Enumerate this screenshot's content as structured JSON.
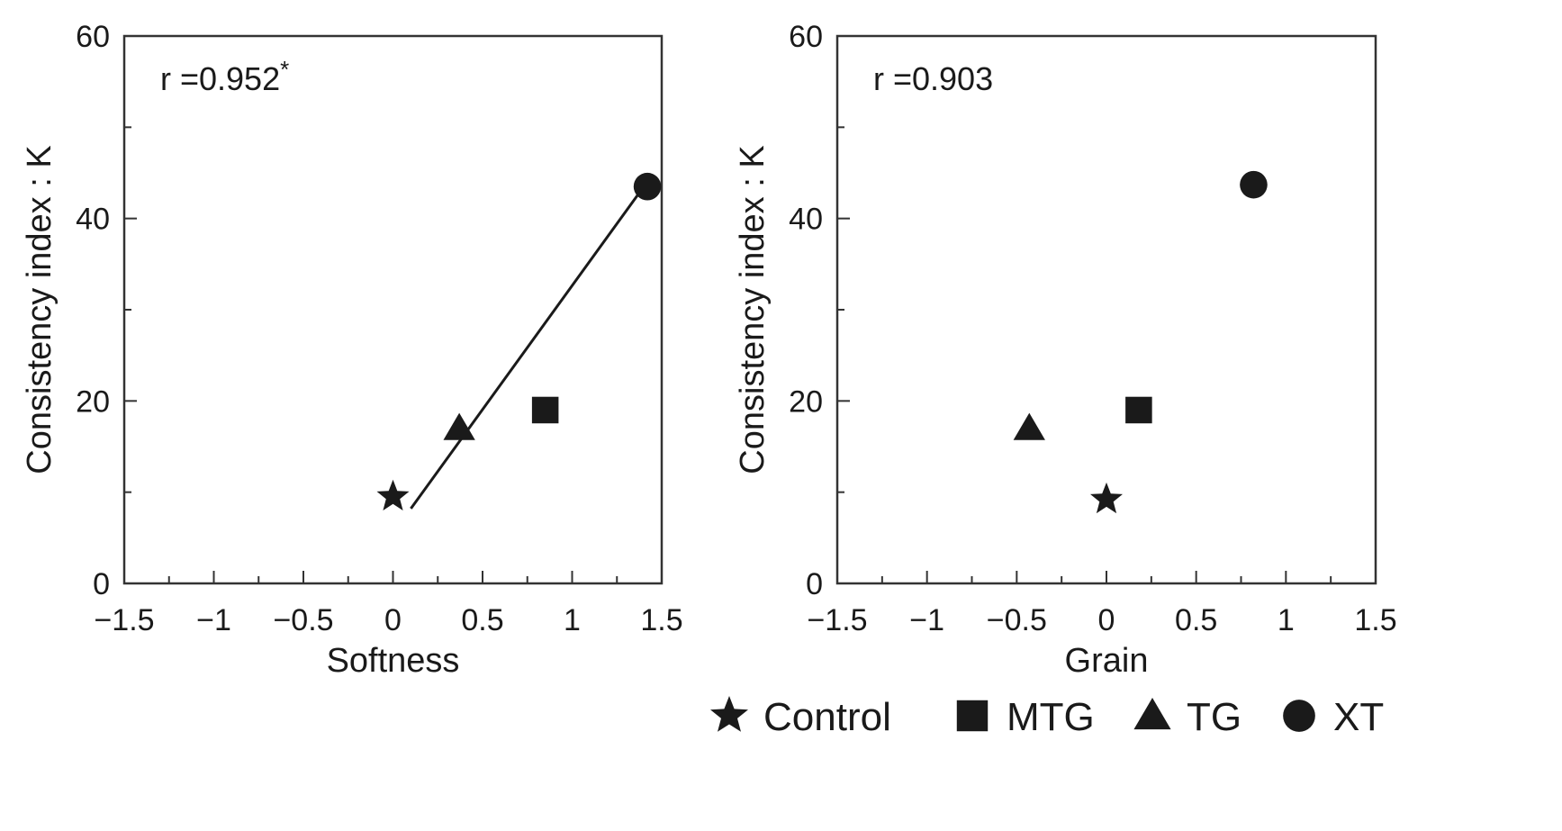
{
  "chart_data": [
    {
      "type": "scatter",
      "xlabel": "Softness",
      "ylabel": "Consistency index : K",
      "xlim": [
        -1.5,
        1.5
      ],
      "ylim": [
        0,
        60
      ],
      "xticks": [
        "−1.5",
        "−1",
        "−0.5",
        "0",
        "0.5",
        "1",
        "1.5"
      ],
      "yticks": [
        "0",
        "20",
        "40",
        "60"
      ],
      "annotation": "r =0.952",
      "annotation_sup": "*",
      "points": [
        {
          "series": "Control",
          "x": 0.0,
          "y": 9.5
        },
        {
          "series": "MTG",
          "x": 0.85,
          "y": 19
        },
        {
          "series": "TG",
          "x": 0.37,
          "y": 17
        },
        {
          "series": "XT",
          "x": 1.42,
          "y": 43.5
        }
      ],
      "fit_line": {
        "x": [
          0.1,
          1.4
        ],
        "y": [
          8.2,
          43.5
        ]
      }
    },
    {
      "type": "scatter",
      "xlabel": "Grain",
      "ylabel": "Consistency index : K",
      "xlim": [
        -1.5,
        1.5
      ],
      "ylim": [
        0,
        60
      ],
      "xticks": [
        "−1.5",
        "−1",
        "−0.5",
        "0",
        "0.5",
        "1",
        "1.5"
      ],
      "yticks": [
        "0",
        "20",
        "40",
        "60"
      ],
      "annotation": "r =0.903",
      "annotation_sup": "",
      "points": [
        {
          "series": "Control",
          "x": 0.0,
          "y": 9.2
        },
        {
          "series": "MTG",
          "x": 0.18,
          "y": 19
        },
        {
          "series": "TG",
          "x": -0.43,
          "y": 17
        },
        {
          "series": "XT",
          "x": 0.82,
          "y": 43.7
        }
      ],
      "fit_line": null
    }
  ],
  "legend": [
    {
      "series": "Control",
      "marker": "star",
      "label": "Control"
    },
    {
      "series": "MTG",
      "marker": "square",
      "label": "MTG"
    },
    {
      "series": "TG",
      "marker": "triangle",
      "label": "TG"
    },
    {
      "series": "XT",
      "marker": "circle",
      "label": "XT"
    }
  ],
  "colors": {
    "ink": "#1a1a1a",
    "axis": "#333333",
    "background": "#ffffff"
  }
}
